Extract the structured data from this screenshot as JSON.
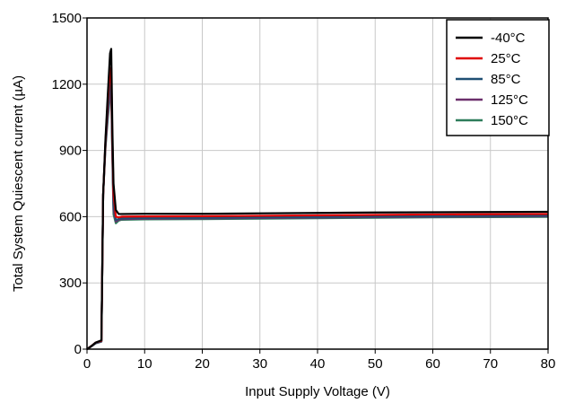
{
  "chart_data": {
    "type": "line",
    "title": "",
    "xlabel": "Input Supply Voltage (V)",
    "ylabel": "Total System Quiescent current (µA)",
    "xlim": [
      0,
      80
    ],
    "ylim": [
      0,
      1500
    ],
    "xticks": [
      0,
      10,
      20,
      30,
      40,
      50,
      60,
      70,
      80
    ],
    "yticks": [
      0,
      300,
      600,
      900,
      1200,
      1500
    ],
    "grid": true,
    "legend_position": "top-right",
    "series": [
      {
        "name": "-40°C",
        "color": "#000000",
        "x": [
          0,
          0.8,
          1.5,
          2.5,
          2.8,
          3.2,
          3.6,
          4.0,
          4.2,
          4.4,
          4.6,
          5.0,
          5.5,
          6,
          10,
          20,
          30,
          40,
          50,
          60,
          70,
          80
        ],
        "y": [
          0,
          15,
          30,
          40,
          700,
          950,
          1150,
          1340,
          1360,
          1000,
          750,
          630,
          612,
          612,
          613,
          613,
          615,
          617,
          619,
          620,
          621,
          622
        ]
      },
      {
        "name": "25°C",
        "color": "#e00000",
        "x": [
          0,
          0.8,
          1.5,
          2.5,
          2.8,
          3.2,
          3.6,
          4.0,
          4.2,
          4.4,
          4.6,
          5.0,
          5.5,
          6,
          10,
          20,
          30,
          40,
          50,
          60,
          70,
          80
        ],
        "y": [
          0,
          15,
          30,
          38,
          700,
          940,
          1120,
          1260,
          1275,
          950,
          700,
          600,
          597,
          600,
          601,
          602,
          604,
          606,
          608,
          610,
          611,
          612
        ]
      },
      {
        "name": "85°C",
        "color": "#1f4f73",
        "x": [
          0,
          0.8,
          1.5,
          2.5,
          2.8,
          3.2,
          3.6,
          4.0,
          4.2,
          4.4,
          4.6,
          5.0,
          5.5,
          6,
          10,
          20,
          30,
          40,
          50,
          60,
          70,
          80
        ],
        "y": [
          0,
          14,
          28,
          36,
          700,
          930,
          1080,
          1200,
          1215,
          900,
          650,
          585,
          590,
          592,
          594,
          595,
          597,
          599,
          601,
          603,
          604,
          605
        ]
      },
      {
        "name": "125°C",
        "color": "#6b2f6b",
        "x": [
          0,
          0.8,
          1.5,
          2.5,
          2.8,
          3.2,
          3.6,
          4.0,
          4.2,
          4.4,
          4.6,
          5.0,
          5.5,
          6,
          10,
          20,
          30,
          40,
          50,
          60,
          70,
          80
        ],
        "y": [
          0,
          14,
          27,
          35,
          700,
          920,
          1060,
          1170,
          1185,
          880,
          630,
          578,
          586,
          589,
          591,
          592,
          594,
          596,
          598,
          600,
          601,
          602
        ]
      },
      {
        "name": "150°C",
        "color": "#2e7d5b",
        "x": [
          0,
          0.8,
          1.5,
          2.5,
          2.8,
          3.2,
          3.6,
          4.0,
          4.2,
          4.4,
          4.6,
          5.0,
          5.5,
          6,
          10,
          20,
          30,
          40,
          50,
          60,
          70,
          80
        ],
        "y": [
          0,
          13,
          26,
          34,
          700,
          910,
          1040,
          1150,
          1165,
          860,
          610,
          570,
          582,
          586,
          588,
          589,
          591,
          593,
          595,
          597,
          598,
          599
        ]
      }
    ]
  }
}
